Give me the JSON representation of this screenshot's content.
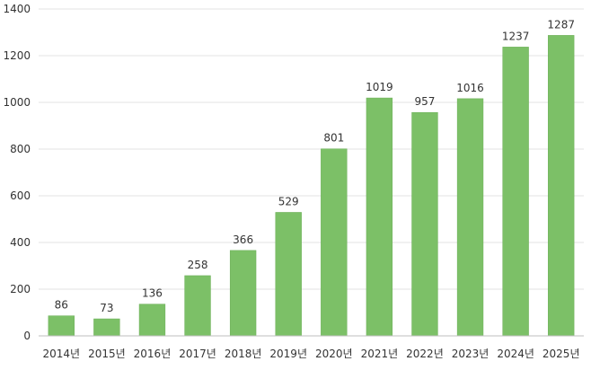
{
  "chart_data": {
    "type": "bar",
    "categories": [
      "2014년",
      "2015년",
      "2016년",
      "2017년",
      "2018년",
      "2019년",
      "2020년",
      "2021년",
      "2022년",
      "2023년",
      "2024년",
      "2025년"
    ],
    "values": [
      86,
      73,
      136,
      258,
      366,
      529,
      801,
      1019,
      957,
      1016,
      1237,
      1287
    ],
    "data_labels": [
      "86",
      "73",
      "136",
      "258",
      "366",
      "529",
      "801",
      "1019",
      "957",
      "1016",
      "1237",
      "1287"
    ],
    "y_ticks": [
      "0",
      "200",
      "400",
      "600",
      "800",
      "1000",
      "1200",
      "1400"
    ],
    "ylim": [
      0,
      1400
    ],
    "grid": true,
    "legend": "none",
    "colors": {
      "bar": "#7cc067",
      "bar_edge": "#6aae56"
    }
  }
}
